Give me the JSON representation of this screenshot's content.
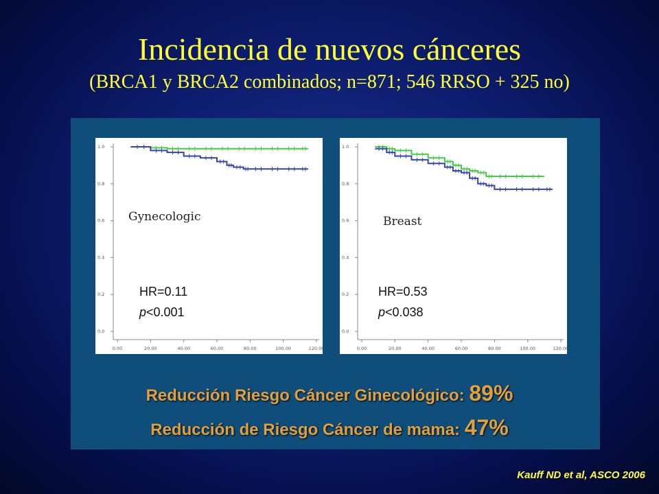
{
  "slide": {
    "title": "Incidencia de nuevos cánceres",
    "subtitle": "(BRCA1 y BRCA2 combinados; n=871; 546 RRSO + 325 no)",
    "summary_gyn_label": "Reducción Riesgo Cáncer Ginecológico: ",
    "summary_gyn_value": "89%",
    "summary_breast_label": "Reducción de Riesgo Cáncer de mama: ",
    "summary_breast_value": "47%",
    "source": "Kauff ND et al, ASCO 2006"
  },
  "colors": {
    "title": "#ffff33",
    "summary": "#e0a040",
    "series_rrso": "#44cc44",
    "series_no": "#3344aa"
  },
  "chart_data": [
    {
      "type": "line",
      "label": "Gynecologic",
      "hr_text": "HR=0.11",
      "p_text": "p<0.001",
      "xlim": [
        0,
        120
      ],
      "ylim": [
        0,
        1.0
      ],
      "xticks": [
        "0.00",
        "20.00",
        "40.00",
        "60.00",
        "80.00",
        "100.00",
        "120.00"
      ],
      "yticks": [
        "0.0",
        "0.2",
        "0.4",
        "0.6",
        "0.8",
        "1.0"
      ],
      "series": [
        {
          "color_key": "series_rrso",
          "x": [
            8,
            20,
            30,
            40,
            50,
            60,
            70,
            80,
            90,
            100,
            110,
            115
          ],
          "y": [
            1.0,
            0.995,
            0.99,
            0.99,
            0.99,
            0.99,
            0.99,
            0.99,
            0.99,
            0.99,
            0.99,
            0.99
          ]
        },
        {
          "color_key": "series_no",
          "x": [
            8,
            20,
            30,
            40,
            50,
            60,
            66,
            70,
            76,
            80,
            90,
            100,
            110,
            115
          ],
          "y": [
            1.0,
            0.98,
            0.97,
            0.95,
            0.94,
            0.92,
            0.9,
            0.89,
            0.88,
            0.88,
            0.88,
            0.88,
            0.88,
            0.88
          ]
        }
      ]
    },
    {
      "type": "line",
      "label": "Breast",
      "hr_text": "HR=0.53",
      "p_text": "p<0.038",
      "xlim": [
        0,
        120
      ],
      "ylim": [
        0,
        1.0
      ],
      "xticks": [
        "0.00",
        "20.00",
        "40.00",
        "60.00",
        "80.00",
        "100.00",
        "120.00"
      ],
      "yticks": [
        "0.0",
        "0.2",
        "0.4",
        "0.6",
        "0.8",
        "1.0"
      ],
      "series": [
        {
          "color_key": "series_rrso",
          "x": [
            8,
            15,
            20,
            30,
            40,
            50,
            55,
            60,
            65,
            70,
            75,
            80,
            90,
            100,
            110
          ],
          "y": [
            1.0,
            0.99,
            0.98,
            0.96,
            0.94,
            0.92,
            0.9,
            0.88,
            0.87,
            0.86,
            0.84,
            0.84,
            0.84,
            0.84,
            0.84
          ]
        },
        {
          "color_key": "series_no",
          "x": [
            8,
            15,
            20,
            30,
            40,
            50,
            55,
            60,
            65,
            70,
            75,
            80,
            90,
            100,
            110,
            115
          ],
          "y": [
            0.99,
            0.97,
            0.95,
            0.93,
            0.91,
            0.89,
            0.87,
            0.86,
            0.83,
            0.8,
            0.79,
            0.77,
            0.77,
            0.77,
            0.77,
            0.77
          ]
        }
      ]
    }
  ]
}
